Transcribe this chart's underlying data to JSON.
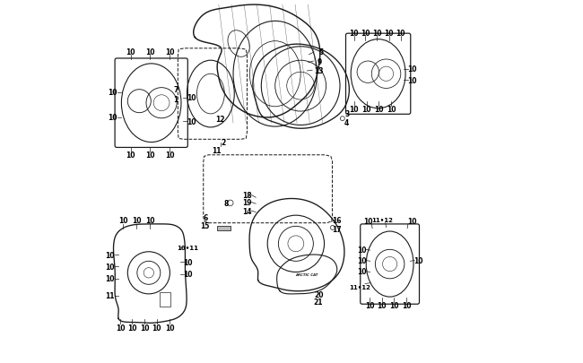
{
  "bg_color": "#ffffff",
  "line_color": "#1a1a1a",
  "label_color": "#000000",
  "fig_width": 6.5,
  "fig_height": 4.06,
  "dpi": 100
}
